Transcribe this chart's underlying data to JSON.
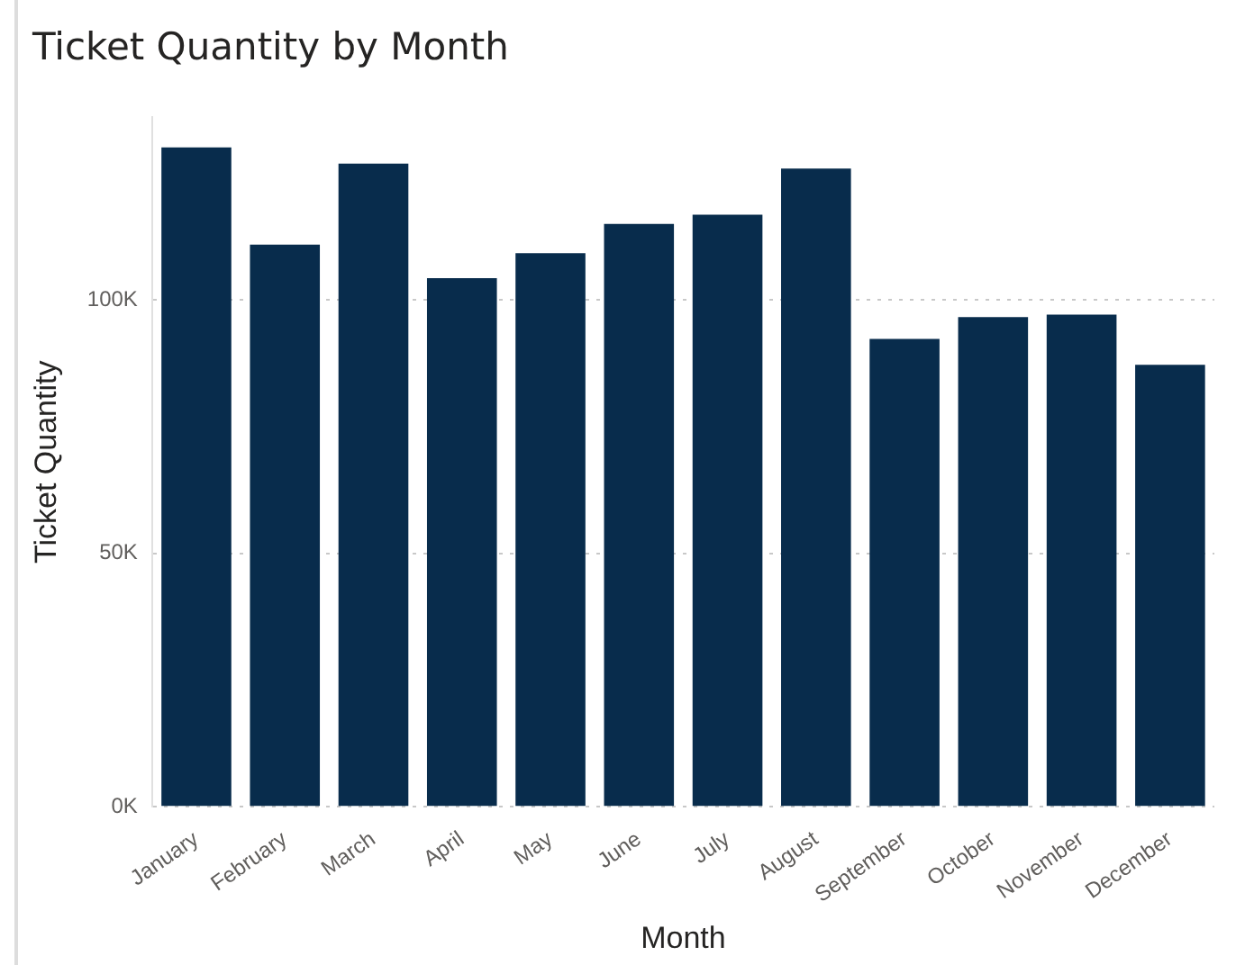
{
  "chart_data": {
    "type": "bar",
    "title": "Ticket Quantity by Month",
    "xlabel": "Month",
    "ylabel": "Ticket Quantity",
    "categories": [
      "January",
      "February",
      "March",
      "April",
      "May",
      "June",
      "July",
      "August",
      "September",
      "October",
      "November",
      "December"
    ],
    "values": [
      130100,
      110900,
      126900,
      104300,
      109200,
      115000,
      116800,
      125900,
      92300,
      96600,
      97100,
      87200
    ],
    "color": "#082c4c",
    "yticks": [
      {
        "value": 0,
        "label": "0K"
      },
      {
        "value": 50000,
        "label": "50K"
      },
      {
        "value": 100000,
        "label": "100K"
      }
    ],
    "ylim": [
      0,
      136000
    ],
    "grid": "y",
    "legend": false
  }
}
